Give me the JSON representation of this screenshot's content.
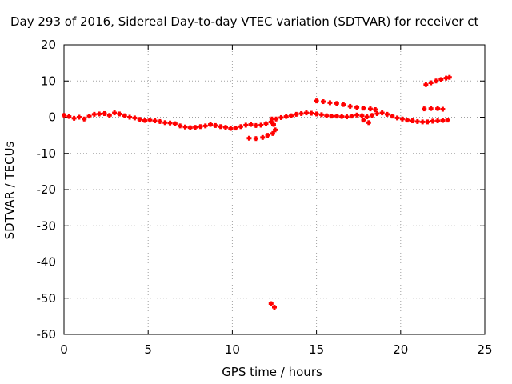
{
  "chart_data": {
    "type": "scatter",
    "title": "Day 293 of 2016, Sidereal Day-to-day VTEC variation (SDTVAR) for receiver ct",
    "xlabel": "GPS time / hours",
    "ylabel": "SDTVAR / TECUs",
    "xlim": [
      0,
      25
    ],
    "ylim": [
      -60,
      20
    ],
    "x_ticks": [
      "0",
      "5",
      "10",
      "15",
      "20",
      "25"
    ],
    "y_ticks": [
      "20",
      "10",
      "0",
      "-10",
      "-20",
      "-30",
      "-40",
      "-50",
      "-60"
    ],
    "grid": true,
    "legend": "none",
    "marker_color": "#ff0000",
    "series": [
      {
        "points": [
          [
            0.0,
            0.5
          ],
          [
            0.3,
            0.2
          ],
          [
            0.6,
            -0.3
          ],
          [
            0.9,
            0.0
          ],
          [
            1.2,
            -0.5
          ],
          [
            1.5,
            0.3
          ],
          [
            1.8,
            0.8
          ],
          [
            2.1,
            0.9
          ],
          [
            2.4,
            1.0
          ],
          [
            2.7,
            0.5
          ],
          [
            3.0,
            1.2
          ],
          [
            3.3,
            0.9
          ],
          [
            3.6,
            0.4
          ],
          [
            3.9,
            0.0
          ],
          [
            4.2,
            -0.2
          ],
          [
            4.5,
            -0.6
          ],
          [
            4.8,
            -0.9
          ],
          [
            5.1,
            -0.8
          ],
          [
            5.4,
            -1.0
          ],
          [
            5.7,
            -1.2
          ],
          [
            6.0,
            -1.5
          ],
          [
            6.3,
            -1.6
          ],
          [
            6.6,
            -1.8
          ],
          [
            6.9,
            -2.4
          ],
          [
            7.2,
            -2.7
          ],
          [
            7.5,
            -2.9
          ],
          [
            7.8,
            -2.8
          ],
          [
            8.1,
            -2.6
          ],
          [
            8.4,
            -2.4
          ],
          [
            8.7,
            -2.0
          ],
          [
            9.0,
            -2.3
          ],
          [
            9.3,
            -2.6
          ],
          [
            9.6,
            -2.8
          ],
          [
            9.9,
            -3.1
          ],
          [
            10.2,
            -3.0
          ],
          [
            10.5,
            -2.6
          ],
          [
            10.8,
            -2.2
          ],
          [
            11.1,
            -2.0
          ],
          [
            11.4,
            -2.3
          ],
          [
            11.7,
            -2.2
          ],
          [
            12.0,
            -1.8
          ],
          [
            12.3,
            -1.3
          ],
          [
            12.6,
            -0.5
          ],
          [
            12.9,
            -0.1
          ],
          [
            13.2,
            0.2
          ],
          [
            13.5,
            0.4
          ],
          [
            13.8,
            0.8
          ],
          [
            14.1,
            1.0
          ],
          [
            14.4,
            1.2
          ],
          [
            14.7,
            1.1
          ],
          [
            15.0,
            0.9
          ],
          [
            15.3,
            0.7
          ],
          [
            15.6,
            0.4
          ],
          [
            15.9,
            0.3
          ],
          [
            16.2,
            0.3
          ],
          [
            16.5,
            0.2
          ],
          [
            16.8,
            0.1
          ],
          [
            17.1,
            0.3
          ],
          [
            17.4,
            0.6
          ],
          [
            17.7,
            0.4
          ],
          [
            18.0,
            0.1
          ],
          [
            18.3,
            0.5
          ],
          [
            18.6,
            1.0
          ],
          [
            18.9,
            1.2
          ],
          [
            19.2,
            0.8
          ],
          [
            19.5,
            0.3
          ],
          [
            19.8,
            -0.2
          ],
          [
            20.1,
            -0.5
          ],
          [
            20.4,
            -0.8
          ],
          [
            20.7,
            -1.0
          ],
          [
            21.0,
            -1.2
          ],
          [
            21.3,
            -1.3
          ],
          [
            21.6,
            -1.3
          ],
          [
            21.9,
            -1.1
          ],
          [
            22.2,
            -1.0
          ],
          [
            22.5,
            -0.9
          ],
          [
            22.8,
            -0.8
          ],
          [
            11.0,
            -5.8
          ],
          [
            11.4,
            -5.9
          ],
          [
            11.8,
            -5.6
          ],
          [
            12.1,
            -5.0
          ],
          [
            12.4,
            -4.5
          ],
          [
            12.35,
            -0.5
          ],
          [
            12.45,
            -2.0
          ],
          [
            12.55,
            -3.5
          ],
          [
            15.0,
            4.5
          ],
          [
            15.4,
            4.3
          ],
          [
            15.8,
            4.0
          ],
          [
            16.2,
            3.8
          ],
          [
            16.6,
            3.5
          ],
          [
            17.0,
            3.0
          ],
          [
            17.4,
            2.7
          ],
          [
            17.8,
            2.5
          ],
          [
            18.2,
            2.3
          ],
          [
            18.5,
            2.1
          ],
          [
            17.8,
            -0.8
          ],
          [
            18.1,
            -1.5
          ],
          [
            21.4,
            2.3
          ],
          [
            21.8,
            2.4
          ],
          [
            22.2,
            2.4
          ],
          [
            22.5,
            2.2
          ],
          [
            21.5,
            9.0
          ],
          [
            21.8,
            9.5
          ],
          [
            22.1,
            10.0
          ],
          [
            22.4,
            10.4
          ],
          [
            22.7,
            10.8
          ],
          [
            22.9,
            11.0
          ],
          [
            12.3,
            -51.5
          ],
          [
            12.5,
            -52.5
          ]
        ]
      }
    ]
  }
}
